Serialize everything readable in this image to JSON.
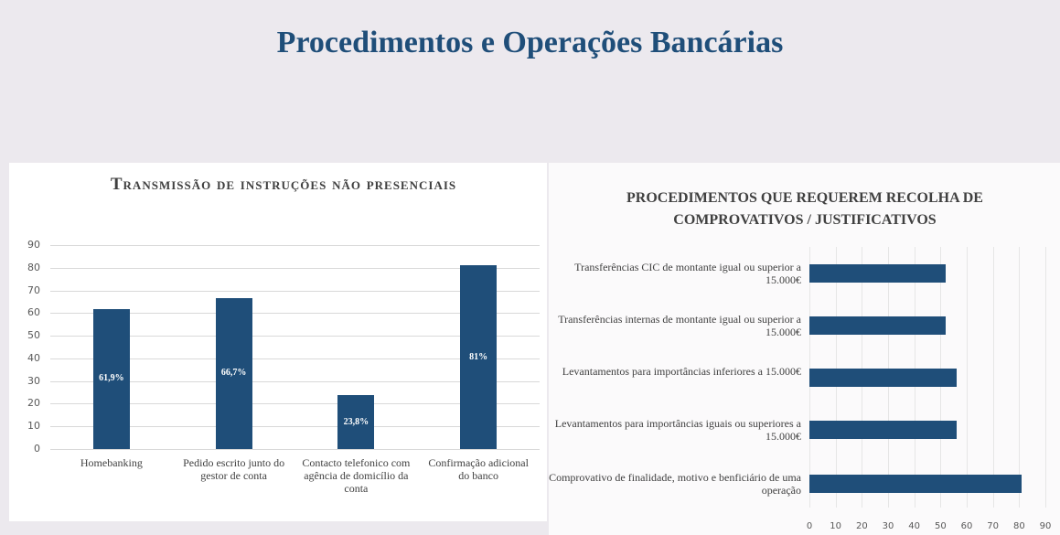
{
  "title": "Procedimentos e Operações Bancárias",
  "chart_data": [
    {
      "type": "bar",
      "title": "Transmissão de instruções não presenciais",
      "categories": [
        "Homebanking",
        "Pedido escrito junto do gestor de conta",
        "Contacto telefonico com agência de domicílio da conta",
        "Confirmação adicional do banco"
      ],
      "values": [
        61.9,
        66.7,
        23.8,
        81
      ],
      "value_labels": [
        "61,9%",
        "66,7%",
        "23,8%",
        "81%"
      ],
      "color": "#1f4e79",
      "ylim": [
        0,
        90
      ],
      "yticks": [
        0,
        10,
        20,
        30,
        40,
        50,
        60,
        70,
        80,
        90
      ],
      "grid": true
    },
    {
      "type": "barh",
      "title": "Procedimentos que requerem recolha de comprovativos / justificativos",
      "categories": [
        "Transferências CIC de montante igual ou superior a 15.000€",
        "Transferências internas de montante igual ou superior a 15.000€",
        "Levantamentos para importâncias inferiores a 15.000€",
        "Levantamentos para importâncias iguais ou superiores a 15.000€",
        "Comprovativo de finalidade, motivo e benficiário de uma operação"
      ],
      "values": [
        52,
        52,
        56,
        56,
        81
      ],
      "color": "#1f4e79",
      "xlim": [
        0,
        90
      ],
      "xticks": [
        0,
        10,
        20,
        30,
        40,
        50,
        60,
        70,
        80,
        90
      ],
      "grid": true
    }
  ]
}
